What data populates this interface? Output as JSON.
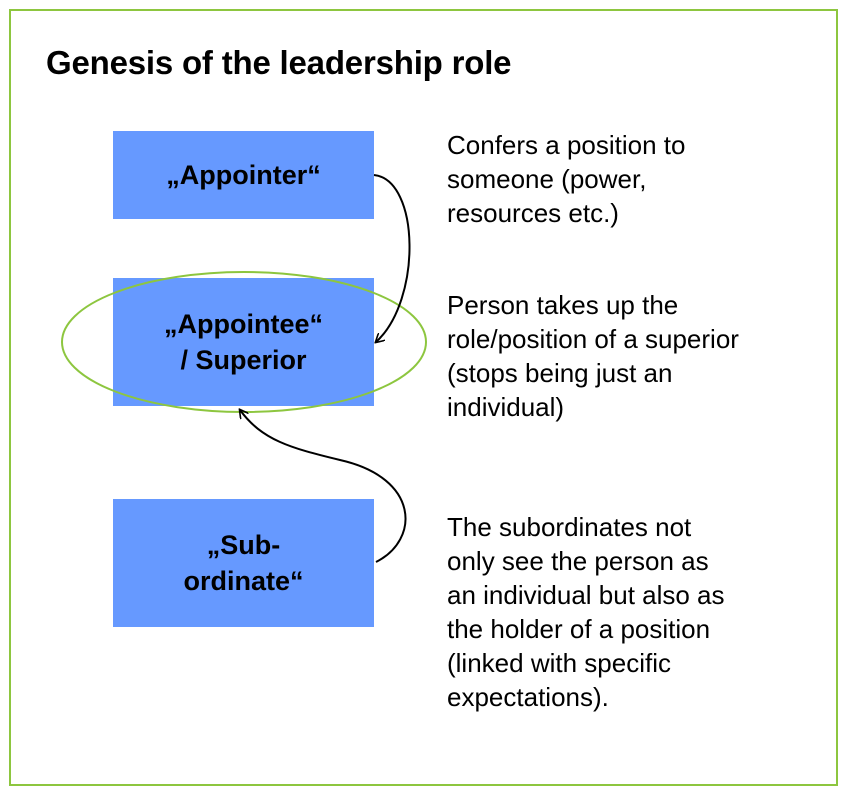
{
  "title": "Genesis of the leadership role",
  "boxes": [
    {
      "lines": [
        "„Appointer“"
      ]
    },
    {
      "lines": [
        "„Appointee“",
        "/ Superior"
      ]
    },
    {
      "lines": [
        "„Sub-",
        "ordinate“"
      ]
    }
  ],
  "descriptions": [
    {
      "lines": [
        "Confers a position to",
        "someone (power,",
        "resources etc.)"
      ]
    },
    {
      "lines": [
        "Person takes up the",
        "role/position of a superior",
        "(stops being just an",
        "individual)"
      ]
    },
    {
      "lines": [
        "The subordinates not",
        "only see the person as",
        "an individual but also as",
        "the holder of a position",
        "(linked with specific",
        "expectations)."
      ]
    }
  ],
  "colors": {
    "frame": "#8dc63f",
    "box_fill": "#6699ff",
    "ellipse": "#8dc63f",
    "arrow": "#000000"
  }
}
